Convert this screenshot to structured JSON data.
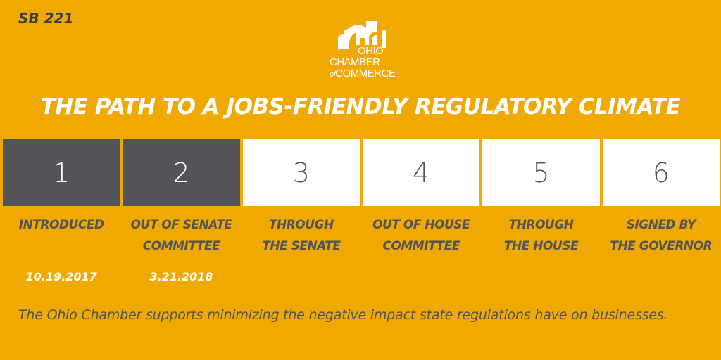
{
  "bill": {
    "id": "SB 221"
  },
  "logo": {
    "line1": "OHIO",
    "line2": "CHAMBER",
    "line3_of": "of",
    "line3": "COMMERCE"
  },
  "headline": "THE PATH TO A JOBS-FRIENDLY REGULATORY CLIMATE",
  "steps": [
    {
      "number": "1",
      "status": "complete",
      "label_line1": "INTRODUCED",
      "label_line2": "",
      "date": "10.19.2017"
    },
    {
      "number": "2",
      "status": "complete",
      "label_line1": "OUT OF SENATE",
      "label_line2": "COMMITTEE",
      "date": "3.21.2018"
    },
    {
      "number": "3",
      "status": "pending",
      "label_line1": "THROUGH",
      "label_line2": "THE SENATE",
      "date": ""
    },
    {
      "number": "4",
      "status": "pending",
      "label_line1": "OUT OF HOUSE",
      "label_line2": "COMMITTEE",
      "date": ""
    },
    {
      "number": "5",
      "status": "pending",
      "label_line1": "THROUGH",
      "label_line2": "THE HOUSE",
      "date": ""
    },
    {
      "number": "6",
      "status": "pending",
      "label_line1": "SIGNED BY",
      "label_line2": "THE GOVERNOR",
      "date": ""
    }
  ],
  "tagline": "The Ohio Chamber supports minimizing the negative impact state regulations have on businesses.",
  "colors": {
    "background": "#F0A901",
    "complete": "#525458",
    "pending": "#FFFFFF",
    "text_dark": "#525458"
  }
}
